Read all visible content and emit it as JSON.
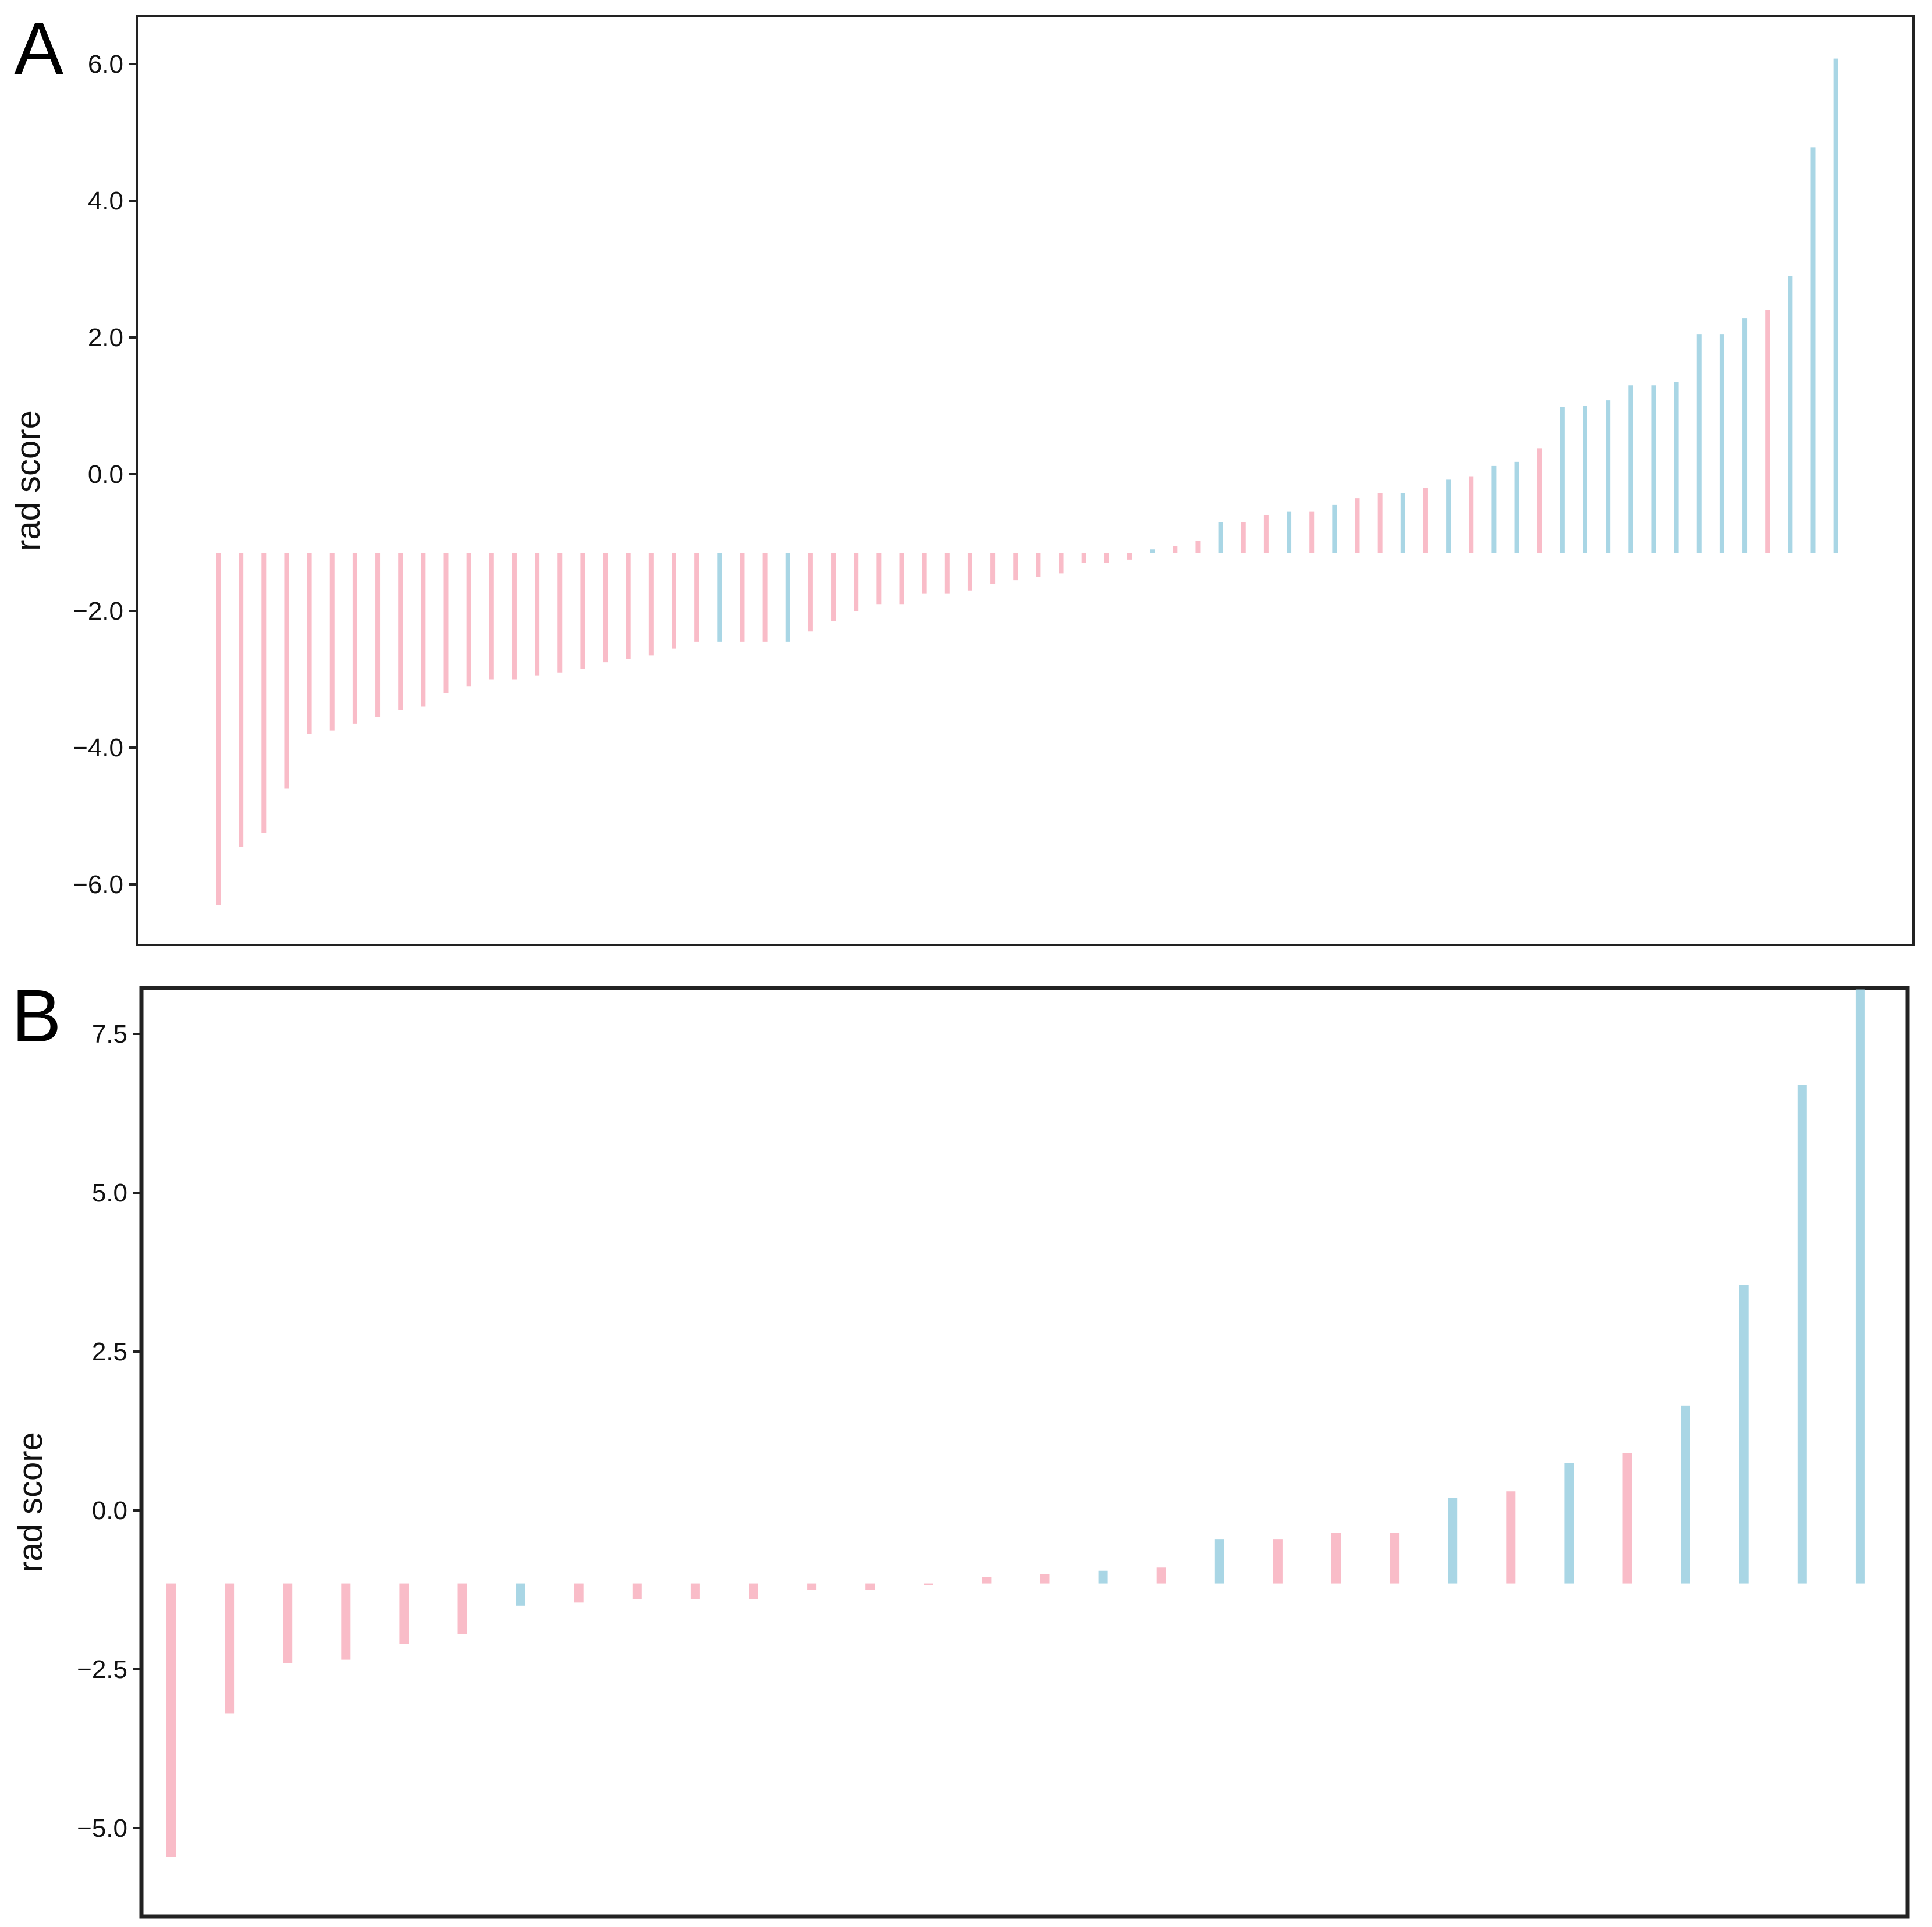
{
  "colors": {
    "pink": "#f9bcc8",
    "blue": "#a9d6e5"
  },
  "chart_data": [
    {
      "panel": "A",
      "type": "bar",
      "baseline": -1.15,
      "ylabel": "rad score",
      "ylim": [
        -6.8,
        6.75
      ],
      "yticks": [
        6.0,
        4.0,
        2.0,
        0.0,
        -2.0,
        -4.0,
        -6.0
      ],
      "ytick_labels": [
        "6.0",
        "4.0",
        "2.0",
        "0.0",
        "−2.0",
        "−4.0",
        "−6.0"
      ],
      "values": [
        -6.3,
        -5.45,
        -5.25,
        -4.6,
        -3.8,
        -3.75,
        -3.65,
        -3.55,
        -3.45,
        -3.4,
        -3.2,
        -3.1,
        -3.0,
        -3.0,
        -2.95,
        -2.9,
        -2.85,
        -2.75,
        -2.7,
        -2.65,
        -2.55,
        -2.45,
        -2.45,
        -2.45,
        -2.45,
        -2.45,
        -2.3,
        -2.15,
        -2.0,
        -1.9,
        -1.9,
        -1.75,
        -1.75,
        -1.7,
        -1.6,
        -1.55,
        -1.5,
        -1.45,
        -1.3,
        -1.3,
        -1.25,
        -1.1,
        -1.05,
        -0.97,
        -0.7,
        -0.7,
        -0.6,
        -0.55,
        -0.55,
        -0.45,
        -0.35,
        -0.28,
        -0.28,
        -0.2,
        -0.08,
        -0.03,
        0.12,
        0.18,
        0.38,
        0.98,
        1.0,
        1.08,
        1.3,
        1.3,
        1.35,
        2.05,
        2.05,
        2.28,
        2.4,
        2.9,
        4.78,
        6.08
      ],
      "classes": [
        "pink",
        "pink",
        "pink",
        "pink",
        "pink",
        "pink",
        "pink",
        "pink",
        "pink",
        "pink",
        "pink",
        "pink",
        "pink",
        "pink",
        "pink",
        "pink",
        "pink",
        "pink",
        "pink",
        "pink",
        "pink",
        "pink",
        "blue",
        "pink",
        "pink",
        "blue",
        "pink",
        "pink",
        "pink",
        "pink",
        "pink",
        "pink",
        "pink",
        "pink",
        "pink",
        "pink",
        "pink",
        "pink",
        "pink",
        "pink",
        "pink",
        "blue",
        "pink",
        "pink",
        "blue",
        "pink",
        "pink",
        "blue",
        "pink",
        "blue",
        "pink",
        "pink",
        "blue",
        "pink",
        "blue",
        "pink",
        "blue",
        "blue",
        "pink",
        "blue",
        "blue",
        "blue",
        "blue",
        "blue",
        "blue",
        "blue",
        "blue",
        "blue",
        "pink",
        "blue",
        "blue",
        "blue"
      ]
    },
    {
      "panel": "B",
      "type": "bar",
      "baseline": -1.15,
      "ylabel": "rad score",
      "ylim": [
        -6.3,
        8.2
      ],
      "yticks": [
        7.5,
        5.0,
        2.5,
        0.0,
        -2.5,
        -5.0
      ],
      "ytick_labels": [
        "7.5",
        "5.0",
        "2.5",
        "0.0",
        "−2.5",
        "−5.0"
      ],
      "values": [
        -5.45,
        -3.2,
        -2.4,
        -2.35,
        -2.1,
        -1.95,
        -1.5,
        -1.45,
        -1.4,
        -1.4,
        -1.4,
        -1.25,
        -1.25,
        -1.15,
        -1.05,
        -1.0,
        -0.95,
        -0.9,
        -0.45,
        -0.45,
        -0.35,
        -0.35,
        0.2,
        0.3,
        0.75,
        0.9,
        1.65,
        3.55,
        6.7,
        8.2
      ],
      "classes": [
        "pink",
        "pink",
        "pink",
        "pink",
        "pink",
        "pink",
        "blue",
        "pink",
        "pink",
        "pink",
        "pink",
        "pink",
        "pink",
        "pink",
        "pink",
        "pink",
        "blue",
        "pink",
        "blue",
        "pink",
        "pink",
        "pink",
        "blue",
        "pink",
        "blue",
        "pink",
        "blue",
        "blue",
        "blue",
        "blue"
      ]
    }
  ]
}
